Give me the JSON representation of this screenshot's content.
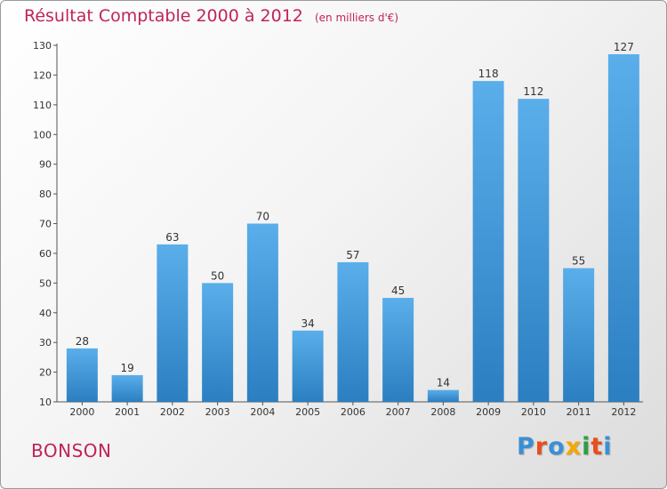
{
  "chart_data": {
    "type": "bar",
    "title": "Résultat Comptable 2000 à 2012",
    "unit": "(en milliers d'€)",
    "xlabel": "",
    "ylabel": "",
    "categories": [
      "2000",
      "2001",
      "2002",
      "2003",
      "2004",
      "2005",
      "2006",
      "2007",
      "2008",
      "2009",
      "2010",
      "2011",
      "2012"
    ],
    "values": [
      28,
      19,
      63,
      50,
      70,
      34,
      57,
      45,
      14,
      118,
      112,
      55,
      127
    ],
    "ylim": [
      10,
      130
    ],
    "yticks": [
      10,
      20,
      30,
      40,
      50,
      60,
      70,
      80,
      90,
      100,
      110,
      120,
      130
    ],
    "grid": false,
    "bar_color_top": "#5aaeea",
    "bar_color_bottom": "#2b7fc1"
  },
  "footer": {
    "commune": "BONSON",
    "logo_text": "Proxiti",
    "logo_colors": [
      "#3a8fd6",
      "#e94e1b",
      "#3a8fd6",
      "#f5a800",
      "#2f9e44",
      "#e94e1b",
      "#3a8fd6"
    ]
  }
}
